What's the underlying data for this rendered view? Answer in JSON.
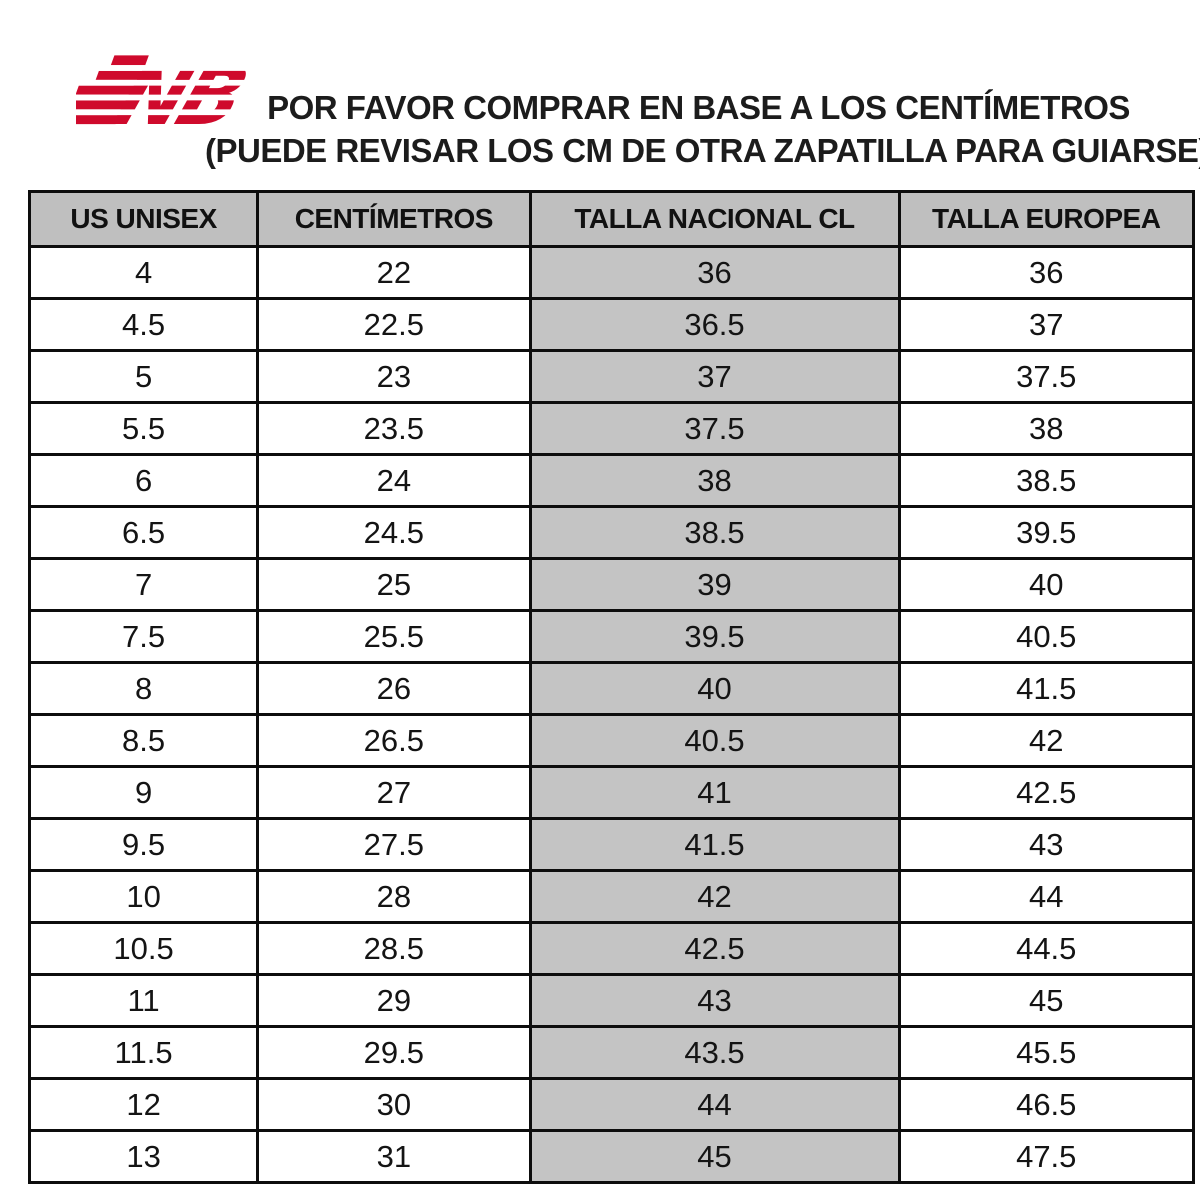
{
  "header": {
    "logo": {
      "brand": "New Balance",
      "monogram": "NB",
      "color": "#cf0a2c"
    },
    "title_line1": "POR FAVOR COMPRAR EN BASE A LOS CENTÍMETROS",
    "title_line2": "(PUEDE REVISAR LOS CM DE OTRA ZAPATILLA PARA GUIARSE)"
  },
  "table": {
    "columns": [
      "US UNISEX",
      "CENTÍMETROS",
      "TALLA NACIONAL CL",
      "TALLA EUROPEA"
    ],
    "highlight_column_index": 2,
    "header_bg": "#bfbfbf",
    "highlight_col_bg": "#c4c4c4",
    "rows": [
      [
        "4",
        "22",
        "36",
        "36"
      ],
      [
        "4.5",
        "22.5",
        "36.5",
        "37"
      ],
      [
        "5",
        "23",
        "37",
        "37.5"
      ],
      [
        "5.5",
        "23.5",
        "37.5",
        "38"
      ],
      [
        "6",
        "24",
        "38",
        "38.5"
      ],
      [
        "6.5",
        "24.5",
        "38.5",
        "39.5"
      ],
      [
        "7",
        "25",
        "39",
        "40"
      ],
      [
        "7.5",
        "25.5",
        "39.5",
        "40.5"
      ],
      [
        "8",
        "26",
        "40",
        "41.5"
      ],
      [
        "8.5",
        "26.5",
        "40.5",
        "42"
      ],
      [
        "9",
        "27",
        "41",
        "42.5"
      ],
      [
        "9.5",
        "27.5",
        "41.5",
        "43"
      ],
      [
        "10",
        "28",
        "42",
        "44"
      ],
      [
        "10.5",
        "28.5",
        "42.5",
        "44.5"
      ],
      [
        "11",
        "29",
        "43",
        "45"
      ],
      [
        "11.5",
        "29.5",
        "43.5",
        "45.5"
      ],
      [
        "12",
        "30",
        "44",
        "46.5"
      ],
      [
        "13",
        "31",
        "45",
        "47.5"
      ]
    ]
  }
}
